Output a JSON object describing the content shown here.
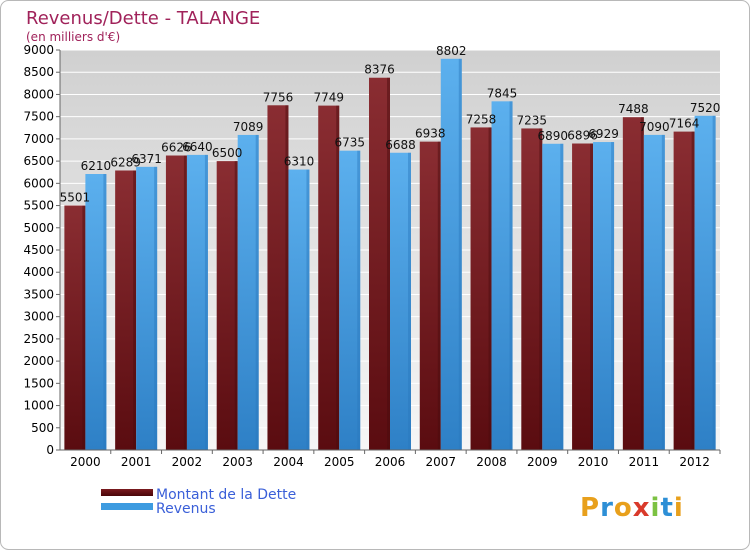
{
  "chart_data": {
    "type": "bar",
    "title": "Revenus/Dette - TALANGE",
    "subtitle": "(en milliers d'€)",
    "xlabel": "",
    "ylabel": "",
    "ylim": [
      0,
      9000
    ],
    "yticks": [
      0,
      500,
      1000,
      1500,
      2000,
      2500,
      3000,
      3500,
      4000,
      4500,
      5000,
      5500,
      6000,
      6500,
      7000,
      7500,
      8000,
      8500,
      9000
    ],
    "grid": true,
    "legend_position": "bottom-left",
    "categories": [
      "2000",
      "2001",
      "2002",
      "2003",
      "2004",
      "2005",
      "2006",
      "2007",
      "2008",
      "2009",
      "2010",
      "2011",
      "2012"
    ],
    "series": [
      {
        "name": "Montant de la Dette",
        "color": "#7a1a1f",
        "values": [
          5501,
          6289,
          6626,
          6500,
          7756,
          7749,
          8376,
          6938,
          7258,
          7235,
          6896,
          7488,
          7164
        ]
      },
      {
        "name": "Revenus",
        "color": "#3d9be0",
        "values": [
          6210,
          6371,
          6640,
          7089,
          6310,
          6735,
          6688,
          8802,
          7845,
          6890,
          6929,
          7090,
          7520
        ]
      }
    ]
  },
  "logo": {
    "text": "Proxiti"
  },
  "colors": {
    "title": "#a0225a",
    "axis_text": "#000000",
    "legend_text": "#3a5fd8",
    "grid": "#ffffff",
    "plot_bg_top": "#d2d2d2",
    "plot_bg_bottom": "#f4f4f4"
  }
}
